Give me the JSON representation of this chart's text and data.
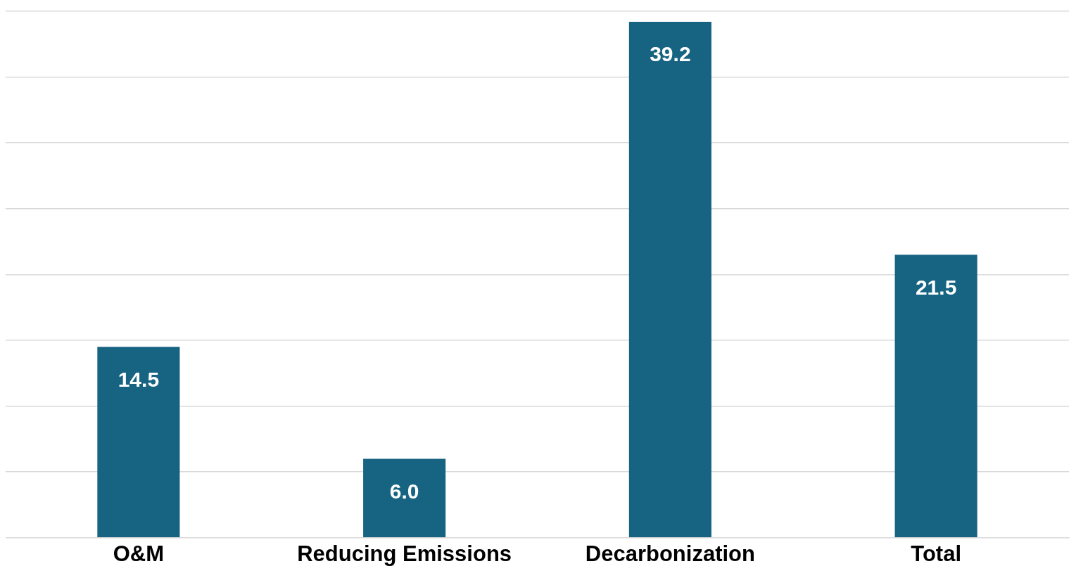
{
  "chart_data": {
    "type": "bar",
    "categories": [
      "O&M",
      "Reducing Emissions",
      "Decarbonization",
      "Total"
    ],
    "values": [
      14.5,
      6.0,
      39.2,
      21.5
    ],
    "color": "#176382",
    "ylim": [
      0,
      40
    ],
    "yticks": [
      {
        "value": 0,
        "label": null
      },
      {
        "value": 5,
        "label": null
      },
      {
        "value": 10,
        "label": null
      },
      {
        "value": 15,
        "label": null
      },
      {
        "value": 20,
        "label": null
      },
      {
        "value": 25,
        "label": null
      },
      {
        "value": 30,
        "label": null
      },
      {
        "value": 35,
        "label": null
      },
      {
        "value": 40,
        "label": null
      }
    ],
    "value_labels": [
      "14.5",
      "6.0",
      "39.2",
      "21.5"
    ],
    "grid": "y",
    "tick_labels": "x",
    "legend": false
  }
}
